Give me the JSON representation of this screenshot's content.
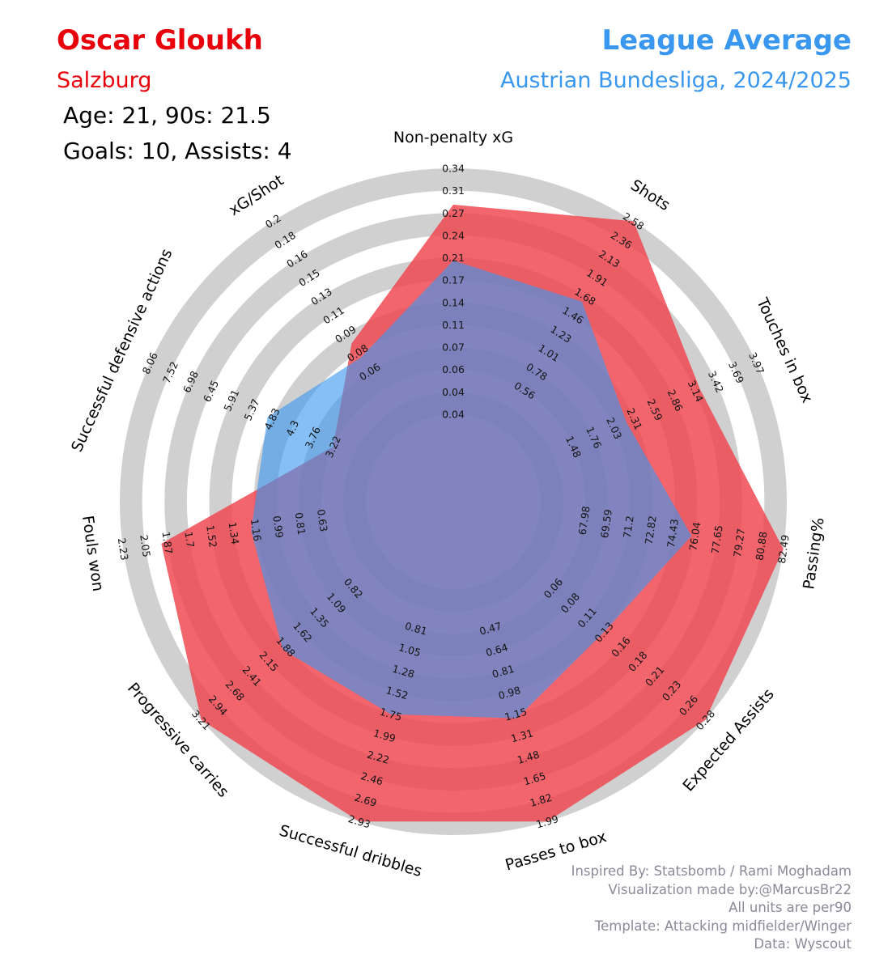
{
  "header": {
    "player_name": "Oscar Gloukh",
    "player_team": "Salzburg",
    "player_age_line": "Age: 21, 90s: 21.5",
    "player_goals_line": "Goals: 10, Assists: 4",
    "comparison_title": "League Average",
    "comparison_league": "Austrian Bundesliga, 2024/2025"
  },
  "footer": {
    "lines": [
      "Inspired By: Statsbomb / Rami Moghadam",
      "Visualization made by:@MarcusBr22",
      "All units are per90",
      "Template: Attacking midfielder/Winger",
      "Data: Wyscout"
    ]
  },
  "colors": {
    "player": "#f0434d",
    "league": "#3a97f0",
    "ring": "#d0d0d0",
    "text": "#000000",
    "footer": "#8a8a98"
  },
  "chart_data": {
    "type": "radar",
    "grid": true,
    "series": [
      {
        "name": "Oscar Gloukh",
        "color": "#f0434d",
        "values": [
          0.285,
          2.58,
          3.2,
          82.49,
          0.28,
          1.99,
          2.93,
          3.21,
          1.92,
          1.0,
          0.085
        ]
      },
      {
        "name": "League Average",
        "color": "#3a97f0",
        "values": [
          0.205,
          1.62,
          2.2,
          75.8,
          0.13,
          1.18,
          1.75,
          1.93,
          1.2,
          4.95,
          0.075
        ]
      }
    ],
    "axes": [
      {
        "label": "Non-penalty xG",
        "ticks": [
          "0.04",
          "0.04",
          "0.06",
          "0.07",
          "0.11",
          "0.14",
          "0.17",
          "0.21",
          "0.24",
          "0.27",
          "0.31",
          "0.34"
        ]
      },
      {
        "label": "Shots",
        "ticks": [
          "0.56",
          "0.78",
          "1.01",
          "1.23",
          "1.46",
          "1.68",
          "1.91",
          "2.13",
          "2.36",
          "2.58"
        ]
      },
      {
        "label": "Touches in box",
        "ticks": [
          "1.48",
          "1.76",
          "2.03",
          "2.31",
          "2.59",
          "2.86",
          "3.14",
          "3.42",
          "3.69",
          "3.97"
        ]
      },
      {
        "label": "Passing%",
        "ticks": [
          "67.98",
          "69.59",
          "71.2",
          "72.82",
          "74.43",
          "76.04",
          "77.65",
          "79.27",
          "80.88",
          "82.49"
        ]
      },
      {
        "label": "Expected Assists",
        "ticks": [
          "0.06",
          "0.08",
          "0.11",
          "0.13",
          "0.16",
          "0.18",
          "0.21",
          "0.23",
          "0.26",
          "0.28"
        ]
      },
      {
        "label": "Passes to box",
        "ticks": [
          "0.47",
          "0.64",
          "0.81",
          "0.98",
          "1.15",
          "1.31",
          "1.48",
          "1.65",
          "1.82",
          "1.99"
        ]
      },
      {
        "label": "Successful dribbles",
        "ticks": [
          "0.81",
          "1.05",
          "1.28",
          "1.52",
          "1.75",
          "1.99",
          "2.22",
          "2.46",
          "2.69",
          "2.93"
        ]
      },
      {
        "label": "Progressive carries",
        "ticks": [
          "0.82",
          "1.09",
          "1.35",
          "1.62",
          "1.88",
          "2.15",
          "2.41",
          "2.68",
          "2.94",
          "3.21"
        ]
      },
      {
        "label": "Fouls won",
        "ticks": [
          "0.63",
          "0.81",
          "0.99",
          "1.16",
          "1.34",
          "1.52",
          "1.7",
          "1.87",
          "2.05",
          "2.23"
        ]
      },
      {
        "label": "Successful defensive actions",
        "ticks": [
          "3.22",
          "3.76",
          "4.3",
          "4.83",
          "5.37",
          "5.91",
          "6.45",
          "6.98",
          "7.52",
          "8.06"
        ]
      },
      {
        "label": "xG/Shot",
        "ticks": [
          "0.06",
          "0.08",
          "0.09",
          "0.11",
          "0.13",
          "0.15",
          "0.16",
          "0.18",
          "0.2"
        ]
      }
    ]
  }
}
